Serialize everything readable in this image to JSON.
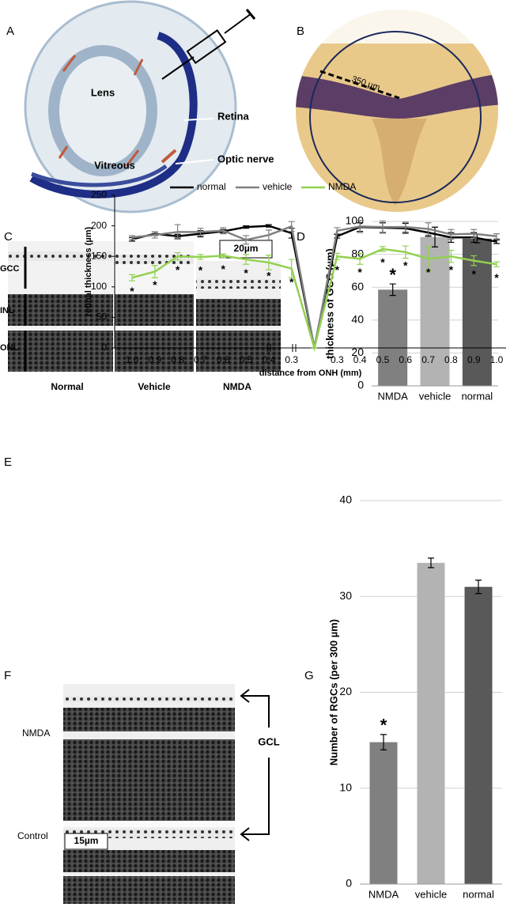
{
  "panels": {
    "labels": [
      "A",
      "B",
      "C",
      "D",
      "E",
      "F",
      "G"
    ],
    "a": {
      "lens": "Lens",
      "retina": "Retina",
      "vitreous": "Vitreous",
      "optic_nerve": "Optic nerve"
    },
    "b": {
      "scale": "350 µm"
    },
    "c": {
      "layers": [
        "GCC",
        "INL",
        "ONL"
      ],
      "groups": [
        "Normal",
        "Vehicle",
        "NMDA"
      ],
      "scale": "20µm"
    },
    "f": {
      "rows": [
        "NMDA",
        "Control"
      ],
      "layer": "GCL",
      "scale": "15µm"
    }
  },
  "chart_data": [
    {
      "type": "bar",
      "ylabel": "thickness of GCC (µm)",
      "categories": [
        "NMDA",
        "vehicle",
        "normal"
      ],
      "values": [
        58.5,
        90.5,
        89.5
      ],
      "errors": [
        3.5,
        6,
        2.5
      ],
      "colors": [
        "#808080",
        "#b3b3b3",
        "#595959"
      ],
      "annotations": [
        "*",
        null,
        null
      ],
      "ylim": [
        0,
        100
      ],
      "yticks": [
        0,
        20,
        40,
        60,
        80,
        100
      ],
      "grid": true
    },
    {
      "type": "line",
      "ylabel": "retinal thickness (µm)",
      "xlabel": "distance from ONH (mm)",
      "categories": [
        "1.0",
        "0.9",
        "0.8",
        "0.7",
        "0.6",
        "0.5",
        "0.4",
        "0.3",
        null,
        "0.3",
        "0.4",
        "0.5",
        "0.6",
        "0.7",
        "0.8",
        "0.9",
        "1.0"
      ],
      "series": [
        {
          "name": "normal",
          "color": "#000000",
          "values": [
            178,
            187,
            183,
            187,
            191,
            198,
            200,
            188,
            0,
            183,
            198,
            197,
            196,
            189,
            181,
            181,
            174
          ],
          "errors": [
            3,
            3,
            3,
            5,
            3,
            2,
            2,
            8,
            0,
            3,
            7,
            8,
            8,
            6,
            8,
            8,
            3
          ]
        },
        {
          "name": "vehicle",
          "color": "#808080",
          "values": [
            181,
            185,
            190,
            190,
            192,
            177,
            185,
            199,
            0,
            192,
            199,
            198,
            198,
            195,
            186,
            187,
            183
          ],
          "errors": [
            3,
            5,
            12,
            6,
            5,
            7,
            8,
            8,
            0,
            5,
            10,
            10,
            8,
            10,
            8,
            7,
            4
          ]
        },
        {
          "name": "NMDA",
          "color": "#92d050",
          "values": [
            115,
            125,
            150,
            149,
            151,
            145,
            140,
            130,
            0,
            150,
            146,
            162,
            157,
            146,
            150,
            143,
            137
          ],
          "errors": [
            5,
            10,
            6,
            4,
            3,
            8,
            12,
            15,
            0,
            5,
            9,
            4,
            10,
            20,
            10,
            8,
            4
          ],
          "annotations": [
            "*",
            "*",
            "*",
            "*",
            "*",
            "*",
            "*",
            "*",
            null,
            "*",
            "*",
            "*",
            "*",
            "*",
            "*",
            "*",
            "*"
          ]
        }
      ],
      "ylim": [
        0,
        250
      ],
      "yticks": [
        0,
        50,
        100,
        150,
        200,
        250
      ],
      "grid": false,
      "legend": "top"
    },
    {
      "type": "bar",
      "ylabel": "Number of RGCs (per 300 µm)",
      "categories": [
        "NMDA",
        "vehicle",
        "normal"
      ],
      "values": [
        14.8,
        33.5,
        31
      ],
      "errors": [
        0.8,
        0.5,
        0.7
      ],
      "colors": [
        "#808080",
        "#b3b3b3",
        "#595959"
      ],
      "annotations": [
        "*",
        null,
        null
      ],
      "ylim": [
        0,
        40
      ],
      "yticks": [
        0,
        10,
        20,
        30,
        40
      ],
      "grid": true
    }
  ]
}
